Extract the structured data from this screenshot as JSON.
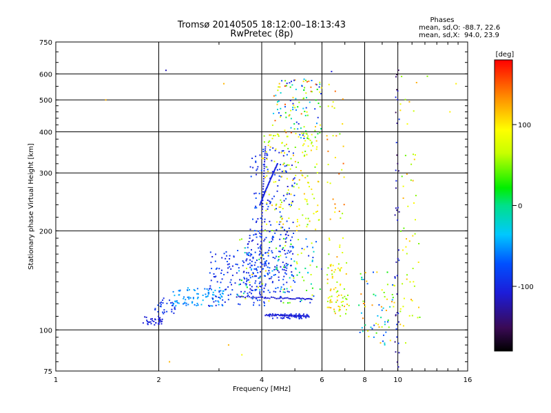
{
  "chart_data": {
    "type": "scatter",
    "title": "Tromsø 20140505 18:12:00–18:13:43",
    "subtitle": "RwPretec (8p)",
    "xlabel": "Frequency [MHz]",
    "ylabel": "Stationary phase Virtual Height [km]",
    "x_scale": "log",
    "y_scale": "log",
    "xlim": [
      1,
      16
    ],
    "ylim": [
      75,
      750
    ],
    "x_ticks": [
      1,
      2,
      4,
      6,
      8,
      10,
      16
    ],
    "y_ticks": [
      75,
      100,
      200,
      300,
      400,
      500,
      600,
      750
    ],
    "grid": true,
    "phase_info": {
      "title": "Phases",
      "line1": "mean, sd,O: -88.7, 22.6",
      "line2": "mean, sd,X:  94.0, 23.9"
    },
    "colorbar": {
      "label": "[deg]",
      "ticks": [
        100,
        0,
        -100
      ],
      "range": [
        -180,
        180
      ],
      "colormap": "rainbow"
    },
    "point_groups": [
      {
        "x": [
          1.8,
          2.05
        ],
        "y": [
          103,
          110
        ],
        "phase": [
          -115,
          -100
        ],
        "n": 35
      },
      {
        "x": [
          1.95,
          2.3
        ],
        "y": [
          112,
          125
        ],
        "phase": [
          -105,
          -85
        ],
        "n": 30
      },
      {
        "x": [
          2.2,
          3.1
        ],
        "y": [
          118,
          135
        ],
        "phase": [
          -70,
          -40
        ],
        "n": 90
      },
      {
        "x": [
          2.8,
          4.2
        ],
        "y": [
          118,
          175
        ],
        "phase": [
          -110,
          -75
        ],
        "n": 140
      },
      {
        "x": [
          3.6,
          5.0
        ],
        "y": [
          130,
          200
        ],
        "phase": [
          -115,
          -70
        ],
        "n": 170
      },
      {
        "x": [
          3.7,
          5.0
        ],
        "y": [
          200,
          360
        ],
        "phase": [
          -115,
          -70
        ],
        "n": 110
      },
      {
        "x": [
          3.4,
          6.0
        ],
        "y": [
          120,
          190
        ],
        "phase": [
          -120,
          110
        ],
        "n": 120
      },
      {
        "x": [
          4.0,
          5.9
        ],
        "y": [
          200,
          400
        ],
        "phase": [
          40,
          120
        ],
        "n": 150
      },
      {
        "x": [
          4.3,
          6.0
        ],
        "y": [
          380,
          580
        ],
        "phase": [
          -110,
          160
        ],
        "n": 120
      },
      {
        "x": [
          4.2,
          5.5
        ],
        "y": [
          108,
          112
        ],
        "phase": [
          -110,
          -95
        ],
        "n": 50
      },
      {
        "x": [
          6.2,
          7.2
        ],
        "y": [
          110,
          160
        ],
        "phase": [
          40,
          130
        ],
        "n": 70
      },
      {
        "x": [
          6.2,
          7.0
        ],
        "y": [
          160,
          600
        ],
        "phase": [
          40,
          150
        ],
        "n": 40
      },
      {
        "x": [
          7.6,
          9.8
        ],
        "y": [
          90,
          150
        ],
        "phase": [
          -90,
          140
        ],
        "n": 70
      },
      {
        "x": [
          9.8,
          10.1
        ],
        "y": [
          75,
          620
        ],
        "phase": [
          -160,
          -90
        ],
        "n": 45
      },
      {
        "x": [
          10.1,
          11.6
        ],
        "y": [
          90,
          620
        ],
        "phase": [
          40,
          130
        ],
        "n": 55
      }
    ],
    "lines": [
      {
        "x0": 3.38,
        "x1": 5.6,
        "y0": 126,
        "y1": 124,
        "phase": -112
      },
      {
        "x0": 4.1,
        "x1": 5.5,
        "y0": 111,
        "y1": 110,
        "phase": -110
      },
      {
        "x0": 3.95,
        "x1": 4.1,
        "y0": 130,
        "y1": 360,
        "phase": -108
      },
      {
        "x0": 3.95,
        "x1": 4.45,
        "y0": 240,
        "y1": 320,
        "phase": -105
      }
    ],
    "outliers": [
      {
        "x": 1.4,
        "y": 500,
        "phase": 120
      },
      {
        "x": 2.1,
        "y": 615,
        "phase": -120
      },
      {
        "x": 3.1,
        "y": 560,
        "phase": 120
      },
      {
        "x": 12.2,
        "y": 590,
        "phase": 50
      },
      {
        "x": 14.8,
        "y": 560,
        "phase": 100
      },
      {
        "x": 14.2,
        "y": 460,
        "phase": 100
      },
      {
        "x": 6.4,
        "y": 610,
        "phase": -110
      },
      {
        "x": 2.15,
        "y": 80,
        "phase": 120
      },
      {
        "x": 3.2,
        "y": 90,
        "phase": 120
      },
      {
        "x": 3.5,
        "y": 84,
        "phase": 90
      }
    ]
  }
}
